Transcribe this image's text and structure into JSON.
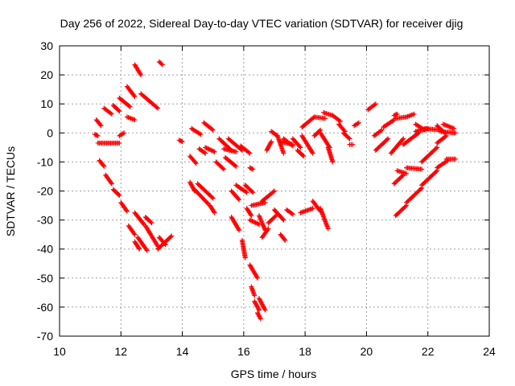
{
  "chart_data": {
    "type": "scatter",
    "title": "Day 256 of 2022, Sidereal Day-to-day VTEC variation (SDTVAR) for receiver djig",
    "xlabel": "GPS time / hours",
    "ylabel": "SDTVAR / TECUs",
    "xlim": [
      10,
      24
    ],
    "ylim": [
      -70,
      30
    ],
    "xticks": [
      "10",
      "12",
      "14",
      "16",
      "18",
      "20",
      "22",
      "24"
    ],
    "yticks": [
      "30",
      "20",
      "10",
      "0",
      "-10",
      "-20",
      "-30",
      "-40",
      "-50",
      "-60",
      "-70"
    ],
    "grid": true,
    "marker": "+",
    "color": "#ff0000",
    "segments": [
      {
        "x0": 11.15,
        "x1": 11.25,
        "y0": -0.5,
        "y1": -1.0
      },
      {
        "x0": 11.2,
        "x1": 11.35,
        "y0": 4.5,
        "y1": 2.5
      },
      {
        "x0": 11.25,
        "x1": 11.95,
        "y0": -3.5,
        "y1": -3.5
      },
      {
        "x0": 11.45,
        "x1": 11.7,
        "y0": 8.5,
        "y1": 6.5
      },
      {
        "x0": 11.3,
        "x1": 11.45,
        "y0": -9.5,
        "y1": -11.5
      },
      {
        "x0": 11.5,
        "x1": 11.7,
        "y0": -14.5,
        "y1": -17.5
      },
      {
        "x0": 11.75,
        "x1": 11.95,
        "y0": 9.5,
        "y1": 7.5
      },
      {
        "x0": 11.75,
        "x1": 11.95,
        "y0": -19.5,
        "y1": -21.5
      },
      {
        "x0": 11.95,
        "x1": 12.3,
        "y0": 12.0,
        "y1": 9.0
      },
      {
        "x0": 11.95,
        "x1": 12.1,
        "y0": -1.0,
        "y1": 0.0
      },
      {
        "x0": 12.0,
        "x1": 12.2,
        "y0": -24.0,
        "y1": -27.0
      },
      {
        "x0": 12.2,
        "x1": 12.45,
        "y0": 16.0,
        "y1": 12.5
      },
      {
        "x0": 12.2,
        "x1": 12.45,
        "y0": 5.5,
        "y1": 4.5
      },
      {
        "x0": 12.25,
        "x1": 12.45,
        "y0": -32.0,
        "y1": -35.0
      },
      {
        "x0": 12.45,
        "x1": 12.65,
        "y0": 23.5,
        "y1": 20.0
      },
      {
        "x0": 12.45,
        "x1": 12.75,
        "y0": -27.5,
        "y1": -31.5
      },
      {
        "x0": 12.45,
        "x1": 12.6,
        "y0": -37.5,
        "y1": -40.0
      },
      {
        "x0": 12.55,
        "x1": 12.85,
        "y0": -36.0,
        "y1": -40.5
      },
      {
        "x0": 12.65,
        "x1": 13.2,
        "y0": 13.5,
        "y1": 8.5
      },
      {
        "x0": 12.8,
        "x1": 13.2,
        "y0": -32.0,
        "y1": -39.0
      },
      {
        "x0": 12.8,
        "x1": 13.0,
        "y0": -29.0,
        "y1": -31.0
      },
      {
        "x0": 13.25,
        "x1": 13.35,
        "y0": 24.5,
        "y1": 23.5
      },
      {
        "x0": 13.2,
        "x1": 13.65,
        "y0": -40.0,
        "y1": -35.5
      },
      {
        "x0": 13.25,
        "x1": 13.45,
        "y0": -36.0,
        "y1": -38.5
      },
      {
        "x0": 13.9,
        "x1": 14.0,
        "y0": -2.5,
        "y1": -3.0
      },
      {
        "x0": 14.25,
        "x1": 14.45,
        "y0": -8.0,
        "y1": -10.5
      },
      {
        "x0": 14.25,
        "x1": 14.4,
        "y0": -17.0,
        "y1": -20.0
      },
      {
        "x0": 14.3,
        "x1": 14.6,
        "y0": 1.5,
        "y1": -0.5
      },
      {
        "x0": 14.4,
        "x1": 14.85,
        "y0": -19.5,
        "y1": -24.5
      },
      {
        "x0": 14.5,
        "x1": 15.0,
        "y0": -17.5,
        "y1": -22.5
      },
      {
        "x0": 14.55,
        "x1": 14.75,
        "y0": -5.5,
        "y1": -7.0
      },
      {
        "x0": 14.7,
        "x1": 15.0,
        "y0": 3.5,
        "y1": 1.0
      },
      {
        "x0": 14.75,
        "x1": 15.05,
        "y0": -5.0,
        "y1": -6.5
      },
      {
        "x0": 14.9,
        "x1": 15.05,
        "y0": -25.0,
        "y1": -27.5
      },
      {
        "x0": 15.1,
        "x1": 15.35,
        "y0": -10.0,
        "y1": -12.5
      },
      {
        "x0": 15.2,
        "x1": 15.6,
        "y0": -2.0,
        "y1": -6.0
      },
      {
        "x0": 15.35,
        "x1": 15.75,
        "y0": -5.5,
        "y1": -6.5
      },
      {
        "x0": 15.4,
        "x1": 15.75,
        "y0": -8.5,
        "y1": -11.5
      },
      {
        "x0": 15.5,
        "x1": 15.95,
        "y0": -2.0,
        "y1": -6.0
      },
      {
        "x0": 15.6,
        "x1": 15.85,
        "y0": -20.0,
        "y1": -23.0
      },
      {
        "x0": 15.6,
        "x1": 15.85,
        "y0": -29.0,
        "y1": -33.5
      },
      {
        "x0": 15.75,
        "x1": 16.1,
        "y0": -18.0,
        "y1": -20.5
      },
      {
        "x0": 15.9,
        "x1": 16.2,
        "y0": -4.5,
        "y1": -7.0
      },
      {
        "x0": 15.95,
        "x1": 16.05,
        "y0": -37.0,
        "y1": -43.0
      },
      {
        "x0": 16.05,
        "x1": 16.3,
        "y0": -18.0,
        "y1": -20.5
      },
      {
        "x0": 16.1,
        "x1": 16.25,
        "y0": -26.0,
        "y1": -28.5
      },
      {
        "x0": 16.2,
        "x1": 16.3,
        "y0": -12.0,
        "y1": -12.5
      },
      {
        "x0": 16.2,
        "x1": 16.45,
        "y0": -45.5,
        "y1": -50.0
      },
      {
        "x0": 16.25,
        "x1": 16.7,
        "y0": -25.0,
        "y1": -24.0
      },
      {
        "x0": 16.2,
        "x1": 16.5,
        "y0": -30.0,
        "y1": -31.5
      },
      {
        "x0": 16.25,
        "x1": 16.35,
        "y0": -53.0,
        "y1": -56.0
      },
      {
        "x0": 16.35,
        "x1": 16.5,
        "y0": -58.0,
        "y1": -61.0
      },
      {
        "x0": 16.45,
        "x1": 16.55,
        "y0": -62.0,
        "y1": -64.0
      },
      {
        "x0": 16.5,
        "x1": 16.7,
        "y0": -57.0,
        "y1": -61.0
      },
      {
        "x0": 16.5,
        "x1": 16.7,
        "y0": -28.5,
        "y1": -33.5
      },
      {
        "x0": 16.6,
        "x1": 16.8,
        "y0": -36.0,
        "y1": -33.0
      },
      {
        "x0": 16.6,
        "x1": 17.0,
        "y0": -23.5,
        "y1": -20.0
      },
      {
        "x0": 16.8,
        "x1": 17.05,
        "y0": -31.0,
        "y1": -28.5
      },
      {
        "x0": 16.75,
        "x1": 16.9,
        "y0": -6.0,
        "y1": -3.0
      },
      {
        "x0": 16.9,
        "x1": 17.1,
        "y0": 0.5,
        "y1": -1.0
      },
      {
        "x0": 17.0,
        "x1": 17.3,
        "y0": -26.5,
        "y1": -30.0
      },
      {
        "x0": 17.1,
        "x1": 17.3,
        "y0": -1.0,
        "y1": -7.0
      },
      {
        "x0": 17.2,
        "x1": 17.35,
        "y0": -35.0,
        "y1": -37.0
      },
      {
        "x0": 17.2,
        "x1": 17.6,
        "y0": -3.0,
        "y1": -4.0
      },
      {
        "x0": 17.3,
        "x1": 17.6,
        "y0": -2.0,
        "y1": -4.5
      },
      {
        "x0": 17.4,
        "x1": 17.6,
        "y0": -26.5,
        "y1": -28.0
      },
      {
        "x0": 17.6,
        "x1": 17.85,
        "y0": -2.0,
        "y1": -5.0
      },
      {
        "x0": 17.75,
        "x1": 17.95,
        "y0": -6.0,
        "y1": -8.0
      },
      {
        "x0": 17.85,
        "x1": 18.25,
        "y0": -27.5,
        "y1": -26.0
      },
      {
        "x0": 17.9,
        "x1": 18.25,
        "y0": -1.0,
        "y1": -7.0
      },
      {
        "x0": 17.9,
        "x1": 18.3,
        "y0": 2.0,
        "y1": 5.5
      },
      {
        "x0": 18.25,
        "x1": 18.5,
        "y0": -23.5,
        "y1": -27.0
      },
      {
        "x0": 18.3,
        "x1": 18.65,
        "y0": 5.5,
        "y1": 5.0
      },
      {
        "x0": 18.3,
        "x1": 18.5,
        "y0": -1.0,
        "y1": 1.0
      },
      {
        "x0": 18.5,
        "x1": 18.75,
        "y0": -26.0,
        "y1": -33.0
      },
      {
        "x0": 18.6,
        "x1": 18.9,
        "y0": 7.0,
        "y1": 6.0
      },
      {
        "x0": 18.5,
        "x1": 18.8,
        "y0": 0.0,
        "y1": -5.0
      },
      {
        "x0": 18.75,
        "x1": 18.9,
        "y0": -5.0,
        "y1": -10.0
      },
      {
        "x0": 18.9,
        "x1": 19.15,
        "y0": 6.0,
        "y1": 4.0
      },
      {
        "x0": 19.1,
        "x1": 19.3,
        "y0": 3.0,
        "y1": 0.5
      },
      {
        "x0": 19.25,
        "x1": 19.45,
        "y0": 0.0,
        "y1": -2.0
      },
      {
        "x0": 19.45,
        "x1": 19.55,
        "y0": -4.0,
        "y1": -4.0
      },
      {
        "x0": 19.6,
        "x1": 19.75,
        "y0": 2.5,
        "y1": 3.5
      },
      {
        "x0": 20.05,
        "x1": 20.3,
        "y0": 8.0,
        "y1": 10.0
      },
      {
        "x0": 20.25,
        "x1": 20.5,
        "y0": -1.0,
        "y1": 1.0
      },
      {
        "x0": 20.3,
        "x1": 20.7,
        "y0": -6.0,
        "y1": -2.0
      },
      {
        "x0": 20.55,
        "x1": 20.9,
        "y0": 2.0,
        "y1": 4.5
      },
      {
        "x0": 20.9,
        "x1": 21.0,
        "y0": 6.0,
        "y1": 6.5
      },
      {
        "x0": 20.95,
        "x1": 21.3,
        "y0": 5.0,
        "y1": 5.5
      },
      {
        "x0": 21.3,
        "x1": 21.55,
        "y0": 5.5,
        "y1": 6.5
      },
      {
        "x0": 20.9,
        "x1": 21.2,
        "y0": -17.5,
        "y1": -14.5
      },
      {
        "x0": 21.0,
        "x1": 21.3,
        "y0": -13.0,
        "y1": -14.0
      },
      {
        "x0": 21.3,
        "x1": 21.8,
        "y0": -12.0,
        "y1": -12.5
      },
      {
        "x0": 21.8,
        "x1": 22.3,
        "y0": -10.0,
        "y1": -5.0
      },
      {
        "x0": 22.3,
        "x1": 22.6,
        "y0": -3.5,
        "y1": -1.0
      },
      {
        "x0": 20.95,
        "x1": 21.3,
        "y0": -28.5,
        "y1": -25.0
      },
      {
        "x0": 21.3,
        "x1": 21.8,
        "y0": -24.0,
        "y1": -19.0
      },
      {
        "x0": 21.8,
        "x1": 22.3,
        "y0": -18.0,
        "y1": -13.0
      },
      {
        "x0": 22.3,
        "x1": 22.65,
        "y0": -12.0,
        "y1": -9.5
      },
      {
        "x0": 22.6,
        "x1": 22.9,
        "y0": -9.0,
        "y1": -9.0
      },
      {
        "x0": 20.8,
        "x1": 21.2,
        "y0": -7.0,
        "y1": -2.0
      },
      {
        "x0": 21.2,
        "x1": 21.7,
        "y0": -4.0,
        "y1": 0.0
      },
      {
        "x0": 21.6,
        "x1": 22.0,
        "y0": 0.5,
        "y1": 1.5
      },
      {
        "x0": 21.6,
        "x1": 21.9,
        "y0": 3.0,
        "y1": 1.0
      },
      {
        "x0": 21.9,
        "x1": 22.4,
        "y0": 1.5,
        "y1": 1.0
      },
      {
        "x0": 22.3,
        "x1": 22.55,
        "y0": 2.5,
        "y1": 0.0
      },
      {
        "x0": 22.5,
        "x1": 22.85,
        "y0": 3.0,
        "y1": 1.5
      },
      {
        "x0": 22.4,
        "x1": 22.9,
        "y0": 0.5,
        "y1": 0.0
      }
    ]
  }
}
